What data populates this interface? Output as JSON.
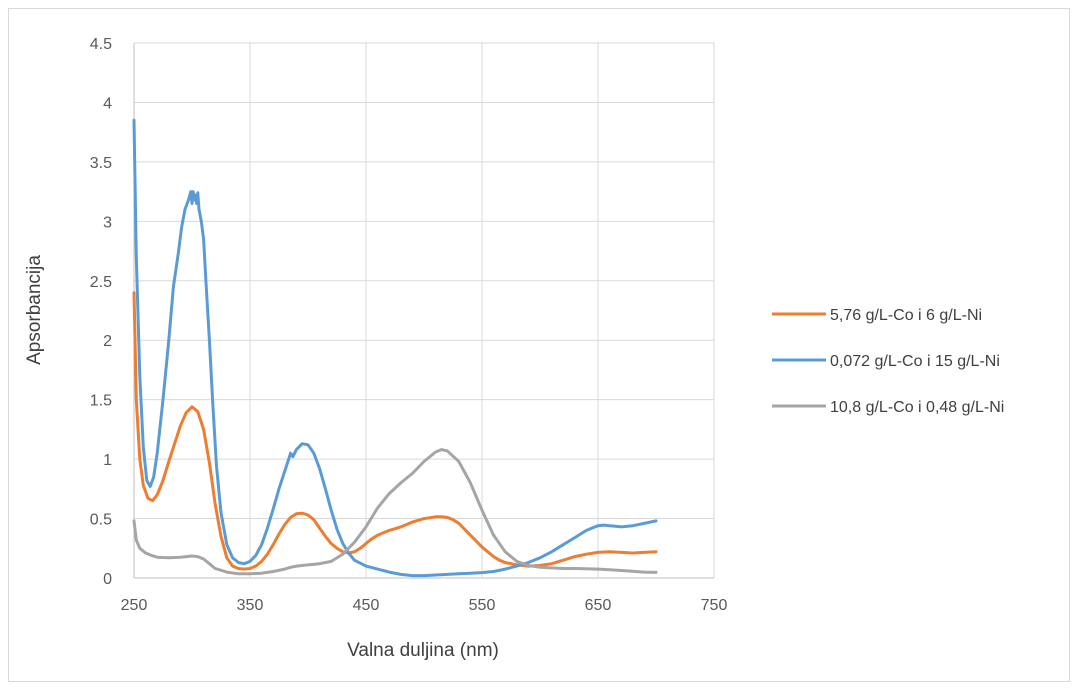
{
  "chart_data": {
    "type": "line",
    "title": "",
    "xlabel": "Valna duljina (nm)",
    "ylabel": "Apsorbancija",
    "xlim": [
      250,
      750
    ],
    "ylim": [
      0,
      4.5
    ],
    "x_ticks": [
      250,
      350,
      450,
      550,
      650,
      750
    ],
    "x_tick_labels": [
      "250",
      "350",
      "450",
      "550",
      "650",
      "750"
    ],
    "y_ticks": [
      0,
      0.5,
      1,
      1.5,
      2,
      2.5,
      3,
      3.5,
      4,
      4.5
    ],
    "y_tick_labels": [
      "0",
      "0.5",
      "1",
      "1.5",
      "2",
      "2.5",
      "3",
      "3.5",
      "4",
      "4.5"
    ],
    "grid": "vertical and horizontal",
    "legend_position": "right",
    "series": [
      {
        "name": "5,76 g/L-Co i 6 g/L-Ni",
        "color": "#ed7d31",
        "points": [
          [
            250,
            2.4
          ],
          [
            252,
            1.5
          ],
          [
            255,
            1.0
          ],
          [
            258,
            0.78
          ],
          [
            262,
            0.67
          ],
          [
            266,
            0.65
          ],
          [
            270,
            0.7
          ],
          [
            275,
            0.82
          ],
          [
            280,
            0.98
          ],
          [
            285,
            1.13
          ],
          [
            290,
            1.28
          ],
          [
            295,
            1.39
          ],
          [
            300,
            1.44
          ],
          [
            305,
            1.4
          ],
          [
            310,
            1.25
          ],
          [
            315,
            0.97
          ],
          [
            320,
            0.62
          ],
          [
            325,
            0.35
          ],
          [
            330,
            0.17
          ],
          [
            335,
            0.1
          ],
          [
            340,
            0.08
          ],
          [
            345,
            0.075
          ],
          [
            350,
            0.08
          ],
          [
            355,
            0.1
          ],
          [
            360,
            0.14
          ],
          [
            365,
            0.2
          ],
          [
            370,
            0.28
          ],
          [
            375,
            0.37
          ],
          [
            380,
            0.45
          ],
          [
            385,
            0.51
          ],
          [
            390,
            0.54
          ],
          [
            395,
            0.545
          ],
          [
            400,
            0.53
          ],
          [
            405,
            0.49
          ],
          [
            410,
            0.42
          ],
          [
            415,
            0.35
          ],
          [
            420,
            0.29
          ],
          [
            425,
            0.25
          ],
          [
            430,
            0.22
          ],
          [
            435,
            0.21
          ],
          [
            440,
            0.22
          ],
          [
            445,
            0.25
          ],
          [
            450,
            0.29
          ],
          [
            455,
            0.33
          ],
          [
            460,
            0.36
          ],
          [
            470,
            0.4
          ],
          [
            480,
            0.43
          ],
          [
            490,
            0.47
          ],
          [
            500,
            0.5
          ],
          [
            510,
            0.515
          ],
          [
            515,
            0.515
          ],
          [
            520,
            0.51
          ],
          [
            525,
            0.49
          ],
          [
            530,
            0.46
          ],
          [
            535,
            0.41
          ],
          [
            540,
            0.36
          ],
          [
            545,
            0.31
          ],
          [
            550,
            0.26
          ],
          [
            555,
            0.22
          ],
          [
            560,
            0.18
          ],
          [
            565,
            0.15
          ],
          [
            570,
            0.13
          ],
          [
            575,
            0.12
          ],
          [
            580,
            0.11
          ],
          [
            590,
            0.1
          ],
          [
            600,
            0.105
          ],
          [
            610,
            0.12
          ],
          [
            620,
            0.15
          ],
          [
            630,
            0.18
          ],
          [
            640,
            0.2
          ],
          [
            650,
            0.215
          ],
          [
            660,
            0.22
          ],
          [
            670,
            0.215
          ],
          [
            680,
            0.21
          ],
          [
            690,
            0.215
          ],
          [
            700,
            0.22
          ]
        ]
      },
      {
        "name": "0,072 g/L-Co i 15 g/L-Ni",
        "color": "#5b9bd5",
        "points": [
          [
            250,
            3.85
          ],
          [
            252,
            2.7
          ],
          [
            255,
            1.7
          ],
          [
            258,
            1.1
          ],
          [
            261,
            0.82
          ],
          [
            264,
            0.77
          ],
          [
            267,
            0.85
          ],
          [
            270,
            1.05
          ],
          [
            275,
            1.5
          ],
          [
            280,
            2.0
          ],
          [
            284,
            2.45
          ],
          [
            288,
            2.72
          ],
          [
            291,
            2.95
          ],
          [
            294,
            3.1
          ],
          [
            297,
            3.18
          ],
          [
            299,
            3.25
          ],
          [
            300,
            3.15
          ],
          [
            301,
            3.25
          ],
          [
            302,
            3.18
          ],
          [
            303,
            3.22
          ],
          [
            304,
            3.15
          ],
          [
            305,
            3.24
          ],
          [
            306,
            3.1
          ],
          [
            308,
            3.0
          ],
          [
            310,
            2.85
          ],
          [
            312,
            2.5
          ],
          [
            315,
            2.0
          ],
          [
            318,
            1.45
          ],
          [
            321,
            0.95
          ],
          [
            325,
            0.55
          ],
          [
            330,
            0.28
          ],
          [
            335,
            0.17
          ],
          [
            340,
            0.13
          ],
          [
            345,
            0.12
          ],
          [
            350,
            0.14
          ],
          [
            355,
            0.19
          ],
          [
            360,
            0.28
          ],
          [
            365,
            0.42
          ],
          [
            370,
            0.58
          ],
          [
            375,
            0.75
          ],
          [
            380,
            0.9
          ],
          [
            383,
            0.99
          ],
          [
            385,
            1.05
          ],
          [
            387,
            1.02
          ],
          [
            390,
            1.08
          ],
          [
            395,
            1.13
          ],
          [
            400,
            1.12
          ],
          [
            405,
            1.05
          ],
          [
            410,
            0.92
          ],
          [
            415,
            0.75
          ],
          [
            420,
            0.57
          ],
          [
            425,
            0.41
          ],
          [
            430,
            0.29
          ],
          [
            435,
            0.21
          ],
          [
            440,
            0.15
          ],
          [
            450,
            0.1
          ],
          [
            460,
            0.075
          ],
          [
            470,
            0.05
          ],
          [
            480,
            0.03
          ],
          [
            490,
            0.02
          ],
          [
            500,
            0.02
          ],
          [
            510,
            0.025
          ],
          [
            520,
            0.03
          ],
          [
            530,
            0.035
          ],
          [
            540,
            0.04
          ],
          [
            550,
            0.045
          ],
          [
            560,
            0.055
          ],
          [
            570,
            0.075
          ],
          [
            580,
            0.1
          ],
          [
            590,
            0.13
          ],
          [
            600,
            0.17
          ],
          [
            610,
            0.22
          ],
          [
            620,
            0.28
          ],
          [
            630,
            0.34
          ],
          [
            640,
            0.4
          ],
          [
            650,
            0.44
          ],
          [
            655,
            0.445
          ],
          [
            660,
            0.44
          ],
          [
            665,
            0.435
          ],
          [
            670,
            0.43
          ],
          [
            680,
            0.44
          ],
          [
            690,
            0.46
          ],
          [
            700,
            0.48
          ]
        ]
      },
      {
        "name": "10,8 g/L-Co i 0,48 g/L-Ni",
        "color": "#a5a5a5",
        "points": [
          [
            250,
            0.48
          ],
          [
            252,
            0.32
          ],
          [
            255,
            0.25
          ],
          [
            260,
            0.21
          ],
          [
            265,
            0.19
          ],
          [
            270,
            0.175
          ],
          [
            280,
            0.17
          ],
          [
            290,
            0.175
          ],
          [
            300,
            0.185
          ],
          [
            305,
            0.18
          ],
          [
            310,
            0.16
          ],
          [
            315,
            0.12
          ],
          [
            320,
            0.08
          ],
          [
            330,
            0.05
          ],
          [
            340,
            0.035
          ],
          [
            350,
            0.035
          ],
          [
            360,
            0.04
          ],
          [
            370,
            0.055
          ],
          [
            380,
            0.075
          ],
          [
            385,
            0.09
          ],
          [
            390,
            0.1
          ],
          [
            400,
            0.11
          ],
          [
            410,
            0.12
          ],
          [
            420,
            0.14
          ],
          [
            430,
            0.2
          ],
          [
            440,
            0.3
          ],
          [
            450,
            0.43
          ],
          [
            460,
            0.59
          ],
          [
            470,
            0.71
          ],
          [
            480,
            0.8
          ],
          [
            490,
            0.88
          ],
          [
            500,
            0.98
          ],
          [
            510,
            1.06
          ],
          [
            515,
            1.08
          ],
          [
            520,
            1.07
          ],
          [
            530,
            0.98
          ],
          [
            540,
            0.8
          ],
          [
            550,
            0.57
          ],
          [
            560,
            0.36
          ],
          [
            570,
            0.22
          ],
          [
            580,
            0.14
          ],
          [
            590,
            0.105
          ],
          [
            600,
            0.09
          ],
          [
            610,
            0.085
          ],
          [
            620,
            0.08
          ],
          [
            630,
            0.08
          ],
          [
            640,
            0.078
          ],
          [
            650,
            0.075
          ],
          [
            660,
            0.07
          ],
          [
            670,
            0.063
          ],
          [
            680,
            0.056
          ],
          [
            690,
            0.05
          ],
          [
            700,
            0.047
          ]
        ]
      }
    ]
  }
}
